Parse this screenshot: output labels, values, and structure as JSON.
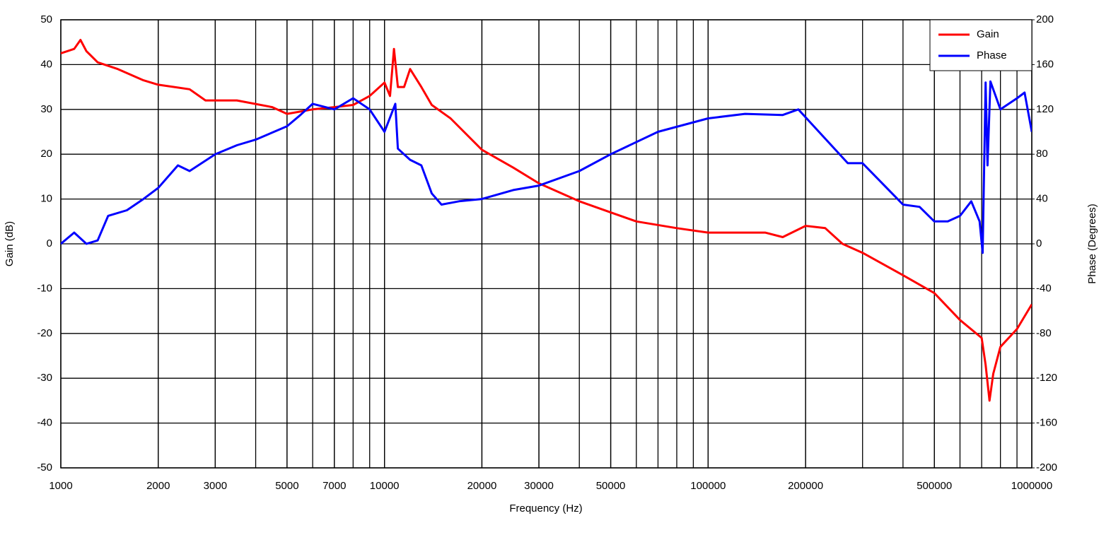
{
  "chart_data": {
    "type": "line",
    "x_label": "Frequency (Hz)",
    "y_label": "Gain (dB)",
    "y2_label": "Phase (Degrees)",
    "xscale": "log",
    "xlim": [
      1000,
      1000000
    ],
    "xticks": [
      1000,
      2000,
      3000,
      5000,
      7000,
      10000,
      20000,
      30000,
      50000,
      100000,
      200000,
      500000,
      1000000
    ],
    "minor_grid": true,
    "grid": true,
    "legend": "upper right",
    "ylim": [
      -50,
      50
    ],
    "yticks": [
      -50,
      -40,
      -30,
      -20,
      -10,
      0,
      10,
      20,
      30,
      40,
      50
    ],
    "y2lim": [
      -200,
      200
    ],
    "y2ticks": [
      -200,
      -160,
      -120,
      -80,
      -40,
      0,
      40,
      80,
      120,
      160,
      200
    ],
    "series": [
      {
        "name": "Gain",
        "color": "#ff0000",
        "x": [
          1000,
          1100,
          1150,
          1200,
          1300,
          1500,
          1800,
          2000,
          2500,
          2800,
          3500,
          4500,
          5000,
          6000,
          7000,
          8000,
          9000,
          10000,
          10400,
          10700,
          11000,
          11500,
          12000,
          13000,
          14000,
          16000,
          20000,
          25000,
          30000,
          40000,
          50000,
          60000,
          80000,
          100000,
          150000,
          170000,
          200000,
          230000,
          260000,
          300000,
          400000,
          500000,
          600000,
          700000,
          720000,
          740000,
          760000,
          800000,
          900000,
          1000000
        ],
        "values": [
          42.5,
          43.5,
          45.5,
          43,
          40.5,
          39,
          36.5,
          35.5,
          34.5,
          32,
          32,
          30.5,
          29,
          30,
          30.5,
          31,
          33,
          36,
          33,
          43.5,
          35,
          35,
          39,
          35,
          31,
          28,
          21,
          17,
          13.5,
          9.5,
          7,
          5,
          3.5,
          2.5,
          2.5,
          1.5,
          4,
          3.5,
          0,
          -2,
          -7,
          -11,
          -17,
          -21,
          -27,
          -35,
          -29,
          -23,
          -19,
          -13.5
        ]
      },
      {
        "name": "Phase",
        "color": "#0000ff",
        "axis": "y2",
        "x": [
          1000,
          1100,
          1200,
          1300,
          1400,
          1600,
          1800,
          2000,
          2300,
          2500,
          3000,
          3500,
          4000,
          5000,
          5500,
          6000,
          7000,
          8000,
          9000,
          10000,
          10800,
          11000,
          12000,
          13000,
          14000,
          15000,
          17000,
          20000,
          25000,
          30000,
          40000,
          50000,
          70000,
          100000,
          130000,
          170000,
          190000,
          220000,
          270000,
          300000,
          400000,
          450000,
          500000,
          550000,
          600000,
          650000,
          690000,
          705000,
          720000,
          730000,
          745000,
          800000,
          900000,
          950000,
          1000000
        ],
        "values": [
          0,
          10,
          0,
          3,
          25,
          30,
          40,
          50,
          70,
          65,
          80,
          88,
          93,
          105,
          115,
          125,
          120,
          130,
          120,
          100,
          125,
          85,
          75,
          70,
          45,
          35,
          38,
          40,
          48,
          52,
          65,
          80,
          100,
          112,
          116,
          115,
          120,
          100,
          72,
          72,
          35,
          33,
          20,
          20,
          25,
          38,
          20,
          -8,
          144,
          70,
          145,
          120,
          130,
          135,
          100
        ]
      }
    ]
  }
}
